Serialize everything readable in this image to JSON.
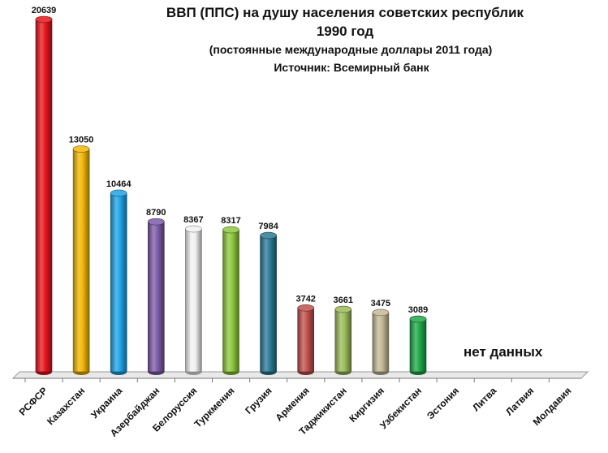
{
  "chart_data": {
    "type": "bar",
    "title": "ВВП (ППС) на душу населения советских республик",
    "subtitle_year": "1990 год",
    "subtitle_units": "(постоянные  международные доллары 2011 года)",
    "source": "Источник: Всемирный банк",
    "no_data_label": "нет данных",
    "xlabel": "",
    "ylabel": "",
    "ylim": [
      0,
      21000
    ],
    "grid": false,
    "categories": [
      "РСФСР",
      "Казахстан",
      "Украина",
      "Азербайджан",
      "Белоруссия",
      "Туркмения",
      "Грузия",
      "Армения",
      "Таджикистан",
      "Киргизия",
      "Узбекистан",
      "Эстония",
      "Литва",
      "Латвия",
      "Молдавия"
    ],
    "values": [
      20639,
      13050,
      10464,
      8790,
      8367,
      8317,
      7984,
      3742,
      3661,
      3475,
      3089,
      null,
      null,
      null,
      null
    ],
    "value_labels": [
      "20639",
      "13050",
      "10464",
      "8790",
      "8367",
      "8317",
      "7984",
      "3742",
      "3661",
      "3475",
      "3089",
      "",
      "",
      "",
      ""
    ],
    "colors": [
      "#e8141c",
      "#f2b705",
      "#1ea3e6",
      "#7d5ba6",
      "#f2f2f2",
      "#8cc83c",
      "#2c7a96",
      "#c0504d",
      "#9bbb59",
      "#c4b996",
      "#1fa84a",
      "",
      "",
      "",
      ""
    ]
  }
}
